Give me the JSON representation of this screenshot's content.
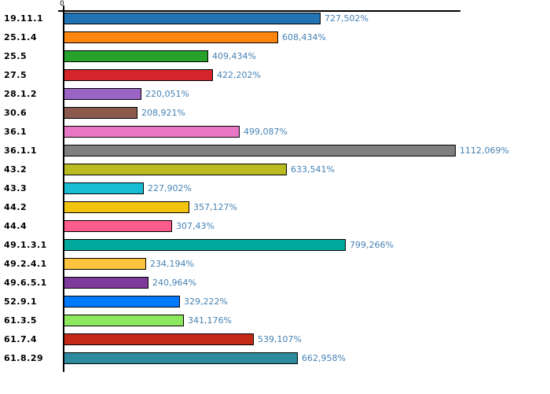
{
  "chart_data": {
    "type": "bar",
    "orientation": "horizontal",
    "title": "",
    "xlabel": "",
    "ylabel": "",
    "axis_zero_label": "0",
    "xlim": [
      0,
      1125
    ],
    "grid": false,
    "legend": false,
    "categories": [
      "19.11.1",
      "25.1.4",
      "25.5",
      "27.5",
      "28.1.2",
      "30.6",
      "36.1",
      "36.1.1",
      "43.2",
      "43.3",
      "44.2",
      "44.4",
      "49.1.3.1",
      "49.2.4.1",
      "49.6.5.1",
      "52.9.1",
      "61.3.5",
      "61.7.4",
      "61.8.29"
    ],
    "values": [
      727.502,
      608.434,
      409.434,
      422.202,
      220.051,
      208.921,
      499.087,
      1112.069,
      633.541,
      227.902,
      357.127,
      307.43,
      799.266,
      234.194,
      240.964,
      329.222,
      341.176,
      539.107,
      662.958
    ],
    "value_labels": [
      "727,502%",
      "608,434%",
      "409,434%",
      "422,202%",
      "220,051%",
      "208,921%",
      "499,087%",
      "1112,069%",
      "633,541%",
      "227,902%",
      "357,127%",
      "307,43%",
      "799,266%",
      "234,194%",
      "240,964%",
      "329,222%",
      "341,176%",
      "539,107%",
      "662,958%"
    ],
    "bar_colors": [
      "#2173B4",
      "#FC860E",
      "#28A22D",
      "#D3252A",
      "#9B64C4",
      "#8C594D",
      "#E878C6",
      "#7F7F7F",
      "#B9BB21",
      "#18BCD3",
      "#F2C40F",
      "#FF5C8D",
      "#00A99D",
      "#FDC23E",
      "#7D3A9B",
      "#007BFF",
      "#8DE85E",
      "#C52A18",
      "#2E8B9E"
    ],
    "bar_border_color": "#000000",
    "value_label_color": "#4682B4",
    "category_label_color": "#000000"
  }
}
